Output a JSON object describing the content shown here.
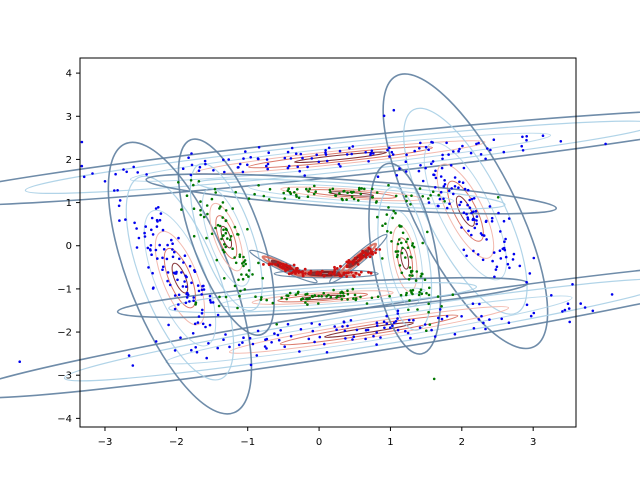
{
  "chart_data": {
    "type": "scatter",
    "title": "",
    "xlabel": "",
    "ylabel": "",
    "xlim": [
      -3.35,
      3.6
    ],
    "ylim": [
      -4.2,
      4.35
    ],
    "grid": false,
    "legend": "none",
    "xticks": [
      -3,
      -2,
      -1,
      0,
      1,
      2,
      3
    ],
    "yticks": [
      -4,
      -3,
      -2,
      -1,
      0,
      1,
      2,
      3,
      4
    ],
    "xtick_labels": [
      "−3",
      "−2",
      "−1",
      "0",
      "1",
      "2",
      "3"
    ],
    "ytick_labels": [
      "−4",
      "−3",
      "−2",
      "−1",
      "0",
      "1",
      "2",
      "3",
      "4"
    ],
    "colors": {
      "outer_points": "#0000ee",
      "middle_points": "#007700",
      "inner_points": "#cc1111",
      "contour_outer": "#5f7fa0",
      "contour_light": "#a9cfe6",
      "contour_pink": "#f2b2a6",
      "contour_red": "#d76a5a",
      "contour_dark": "#7a1f24"
    },
    "series": [
      {
        "group": "outer",
        "clusters": [
          {
            "cx": 0.3,
            "cy": 2.05,
            "sx": 1.85,
            "sy": 0.14,
            "rot": 6
          },
          {
            "cx": 2.05,
            "cy": 0.8,
            "sx": 0.22,
            "sy": 1.1,
            "rot": 27
          },
          {
            "cx": 0.7,
            "cy": -1.95,
            "sx": 1.8,
            "sy": 0.16,
            "rot": 9
          },
          {
            "cx": -1.95,
            "cy": -0.75,
            "sx": 0.22,
            "sy": 1.05,
            "rot": 22
          }
        ],
        "n_per_cluster": 110
      },
      {
        "group": "middle",
        "clusters": [
          {
            "cx": 0.45,
            "cy": 1.2,
            "sx": 0.9,
            "sy": 0.1,
            "rot": -4
          },
          {
            "cx": 1.2,
            "cy": -0.3,
            "sx": 0.14,
            "sy": 0.7,
            "rot": 10
          },
          {
            "cx": 0.05,
            "cy": -1.2,
            "sx": 0.9,
            "sy": 0.1,
            "rot": 4
          },
          {
            "cx": -1.3,
            "cy": 0.2,
            "sx": 0.15,
            "sy": 0.75,
            "rot": 20
          }
        ],
        "n_per_cluster": 70
      },
      {
        "group": "inner",
        "clusters": [
          {
            "cx": -0.5,
            "cy": -0.48,
            "sx": 0.2,
            "sy": 0.04,
            "rot": -25
          },
          {
            "cx": 0.1,
            "cy": -0.65,
            "sx": 0.28,
            "sy": 0.035,
            "rot": 0
          },
          {
            "cx": 0.55,
            "cy": -0.3,
            "sx": 0.2,
            "sy": 0.045,
            "rot": 40
          }
        ],
        "n_per_cluster": 45
      }
    ]
  }
}
